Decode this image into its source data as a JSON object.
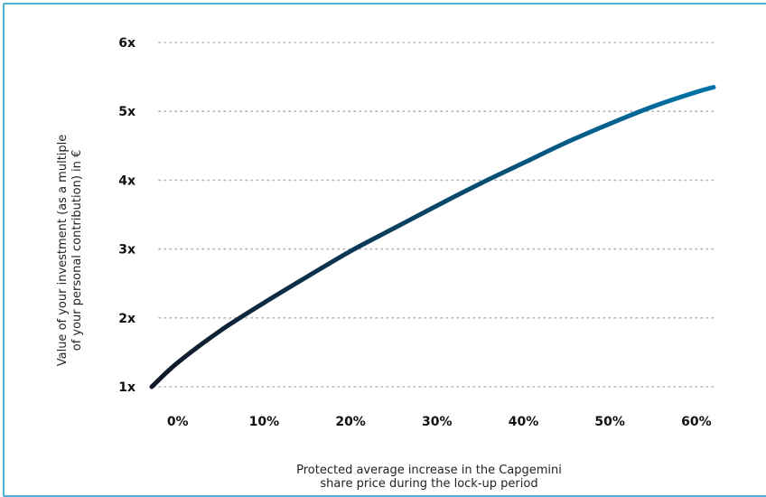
{
  "colors": {
    "frame_border": "#4fb3d9",
    "line_start": "#111827",
    "line_end": "#0073a8",
    "grid": "#b5b5b5"
  },
  "chart_data": {
    "type": "line",
    "title": "",
    "xlabel": [
      "Protected average increase in the Capgemini",
      "share price during the lock-up period"
    ],
    "ylabel": [
      "Value of your investment (as a multiple",
      "of your personal contribution) in €"
    ],
    "x_ticks": [
      {
        "value": 0,
        "label": "0%"
      },
      {
        "value": 10,
        "label": "10%"
      },
      {
        "value": 20,
        "label": "20%"
      },
      {
        "value": 30,
        "label": "30%"
      },
      {
        "value": 40,
        "label": "40%"
      },
      {
        "value": 50,
        "label": "50%"
      },
      {
        "value": 60,
        "label": "60%"
      }
    ],
    "y_ticks": [
      {
        "value": 1,
        "label": "1x"
      },
      {
        "value": 2,
        "label": "2x"
      },
      {
        "value": 3,
        "label": "3x"
      },
      {
        "value": 4,
        "label": "4x"
      },
      {
        "value": 5,
        "label": "5x"
      },
      {
        "value": 6,
        "label": "6x"
      }
    ],
    "xlim": [
      -3,
      62
    ],
    "ylim": [
      1,
      6
    ],
    "grid": "horizontal dotted",
    "legend": "none",
    "series": [
      {
        "x": [
          -3,
          0,
          5,
          10,
          15,
          20,
          25,
          30,
          35,
          40,
          45,
          50,
          55,
          60,
          62
        ],
        "values": [
          1.0,
          1.35,
          1.82,
          2.22,
          2.6,
          2.97,
          3.3,
          3.63,
          3.95,
          4.25,
          4.55,
          4.82,
          5.07,
          5.28,
          5.35
        ]
      }
    ]
  }
}
